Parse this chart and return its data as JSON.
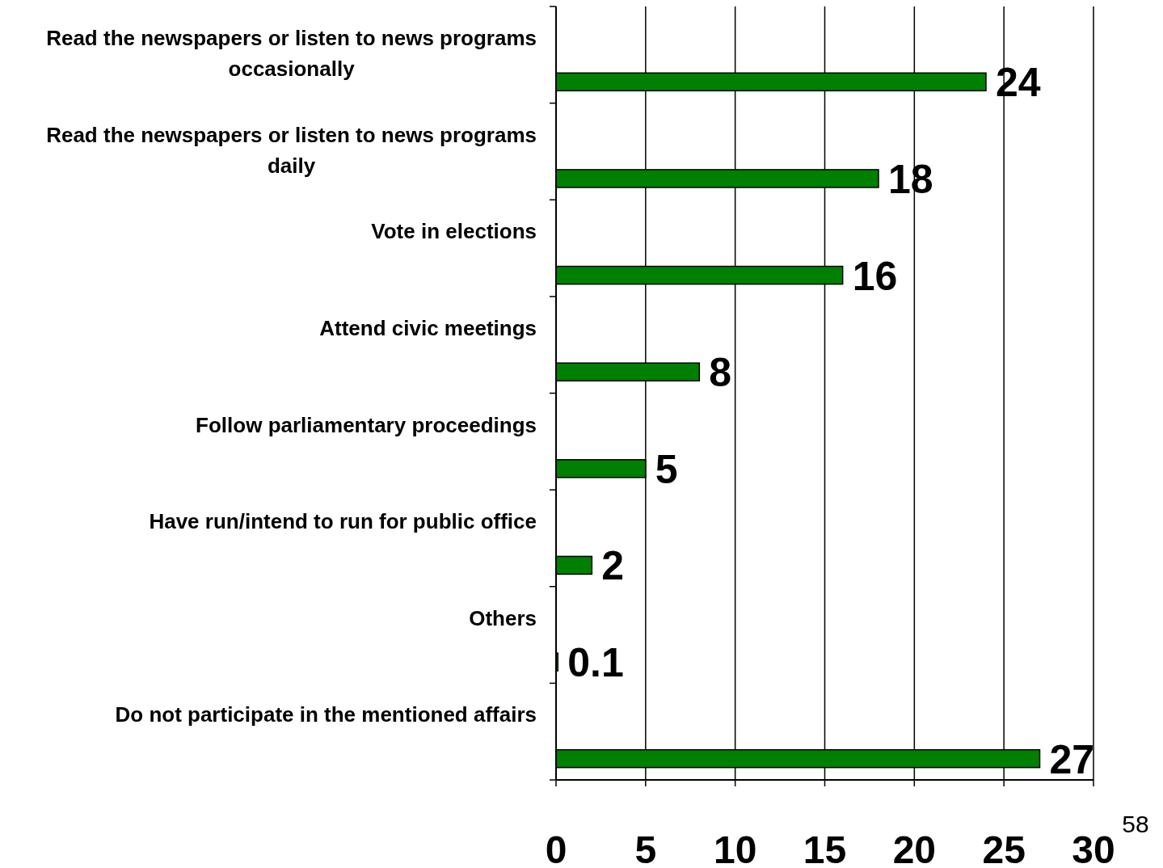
{
  "chart_data": {
    "type": "bar",
    "orientation": "horizontal",
    "categories": [
      "Read the newspapers or listen to news programs occasionally",
      "Read the newspapers or listen to news programs daily",
      "Vote in elections",
      "Attend civic meetings",
      "Follow parliamentary proceedings",
      "Have run/intend to run for public office",
      "Others",
      "Do not participate in the mentioned affairs"
    ],
    "values": [
      24,
      18,
      16,
      8,
      5,
      2,
      0.1,
      27
    ],
    "color": "#008000",
    "xlim": [
      0,
      30
    ],
    "xticks": [
      0,
      5,
      10,
      15,
      20,
      25,
      30
    ],
    "grid": "x",
    "data_labels": true,
    "annotations": [
      "58"
    ]
  }
}
